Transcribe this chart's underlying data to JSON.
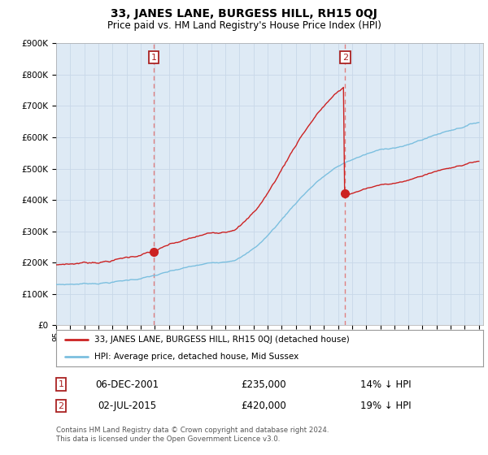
{
  "title": "33, JANES LANE, BURGESS HILL, RH15 0QJ",
  "subtitle": "Price paid vs. HM Land Registry's House Price Index (HPI)",
  "ylim": [
    0,
    900000
  ],
  "yticks": [
    0,
    100000,
    200000,
    300000,
    400000,
    500000,
    600000,
    700000,
    800000,
    900000
  ],
  "ytick_labels": [
    "£0",
    "£100K",
    "£200K",
    "£300K",
    "£400K",
    "£500K",
    "£600K",
    "£700K",
    "£800K",
    "£900K"
  ],
  "hpi_color": "#7bbfdf",
  "price_color": "#cc2222",
  "chart_bg_color": "#deeaf5",
  "marker1_year": 2001.92,
  "marker2_year": 2015.5,
  "marker1_label": "1",
  "marker2_label": "2",
  "marker1_date": "06-DEC-2001",
  "marker1_price_str": "£235,000",
  "marker1_pct": "14%",
  "marker2_date": "02-JUL-2015",
  "marker2_price_str": "£420,000",
  "marker2_pct": "19%",
  "legend_line1": "33, JANES LANE, BURGESS HILL, RH15 0QJ (detached house)",
  "legend_line2": "HPI: Average price, detached house, Mid Sussex",
  "footer": "Contains HM Land Registry data © Crown copyright and database right 2024.\nThis data is licensed under the Open Government Licence v3.0.",
  "background_color": "#ffffff",
  "grid_color": "#c8d8e8",
  "vline_color": "#e08080",
  "marker_box_color": "#aa2222",
  "marker1_price": 235000,
  "marker2_price": 420000
}
